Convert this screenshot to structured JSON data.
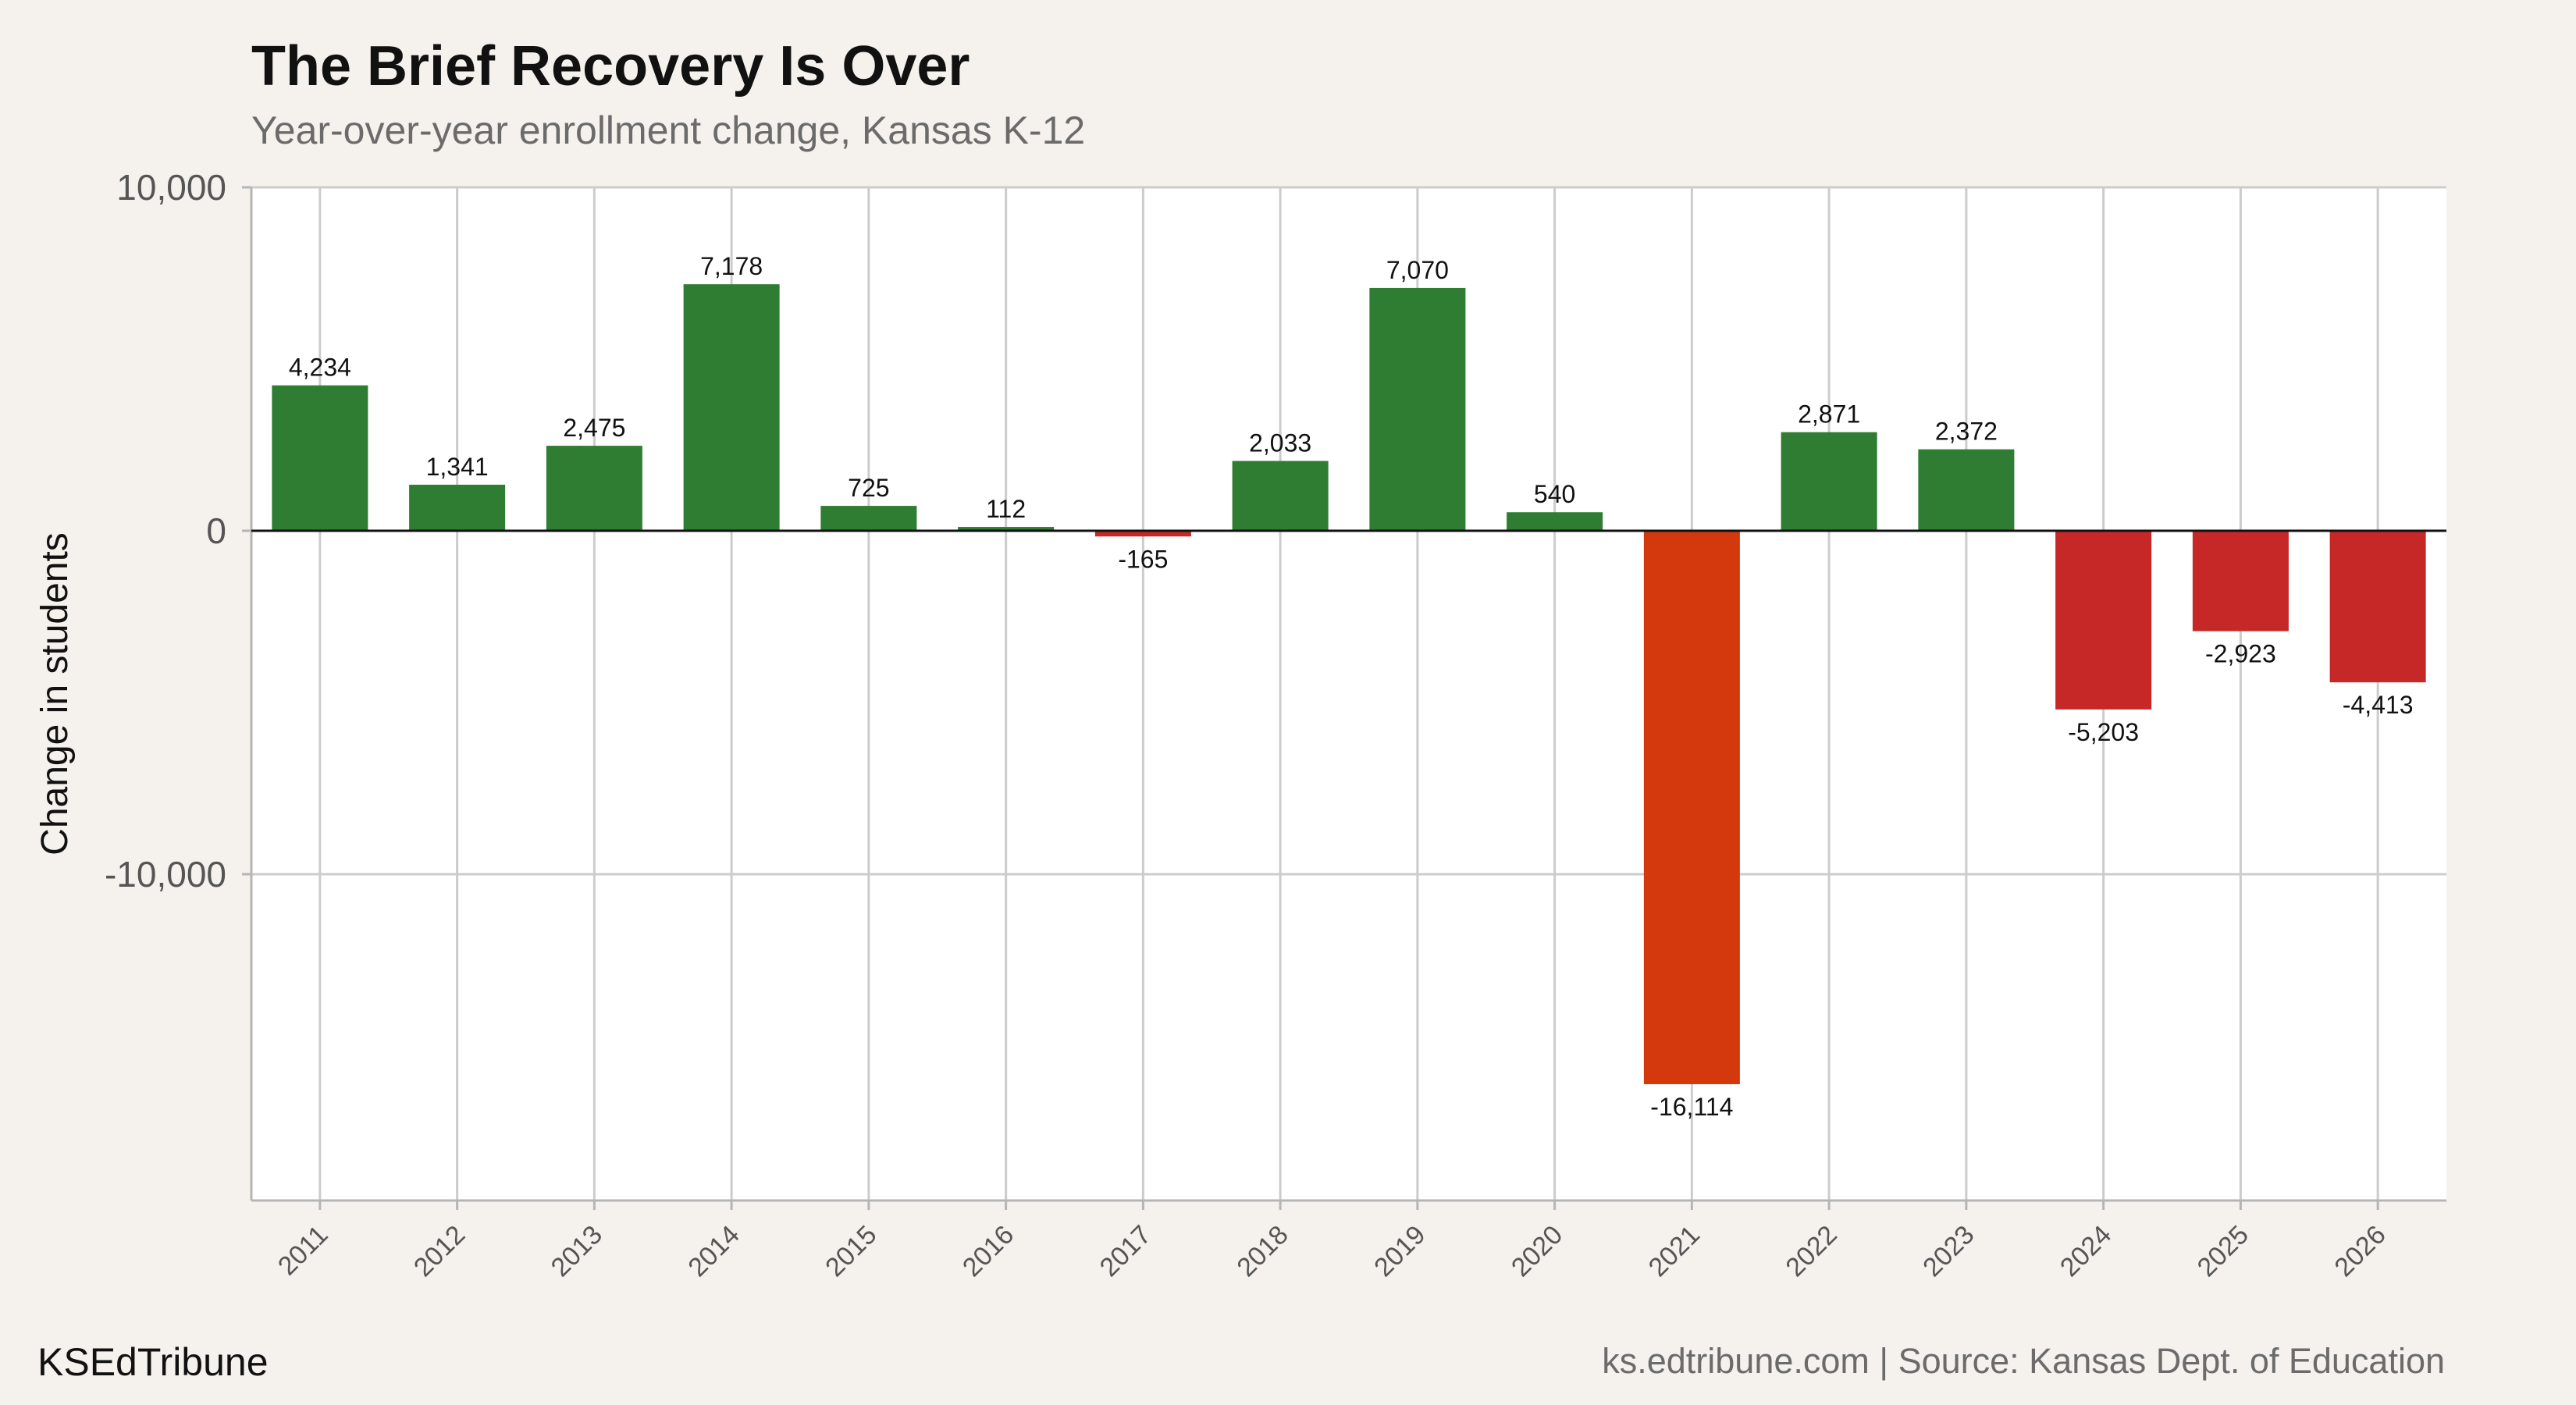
{
  "header": {
    "title": "The Brief Recovery Is Over",
    "subtitle": "Year-over-year enrollment change, Kansas K-12"
  },
  "footer": {
    "brand": "KSEdTribune",
    "source": "ks.edtribune.com | Source: Kansas Dept. of Education"
  },
  "colors": {
    "positive": "#2e7d32",
    "negative": "#c62828",
    "highlight": "#d4380d",
    "background": "#f5f2ed",
    "panel": "#ffffff",
    "grid": "#cccccc"
  },
  "chart_data": {
    "type": "bar",
    "title": "The Brief Recovery Is Over",
    "subtitle": "Year-over-year enrollment change, Kansas K-12",
    "xlabel": "",
    "ylabel": "Change in students",
    "ylim": [
      -19500,
      10000
    ],
    "yticks": [
      10000,
      0,
      -10000
    ],
    "ytick_labels": [
      "10,000",
      "0",
      "-10,000"
    ],
    "grid": true,
    "legend": "none",
    "categories": [
      "2011",
      "2012",
      "2013",
      "2014",
      "2015",
      "2016",
      "2017",
      "2018",
      "2019",
      "2020",
      "2021",
      "2022",
      "2023",
      "2024",
      "2025",
      "2026"
    ],
    "values": [
      4234,
      1341,
      2475,
      7178,
      725,
      112,
      -165,
      2033,
      7070,
      540,
      -16114,
      2871,
      2372,
      -5203,
      -2923,
      -4413
    ],
    "value_labels": [
      "4,234",
      "1,341",
      "2,475",
      "7,178",
      "725",
      "112",
      "-165",
      "2,033",
      "7,070",
      "540",
      "-16,114",
      "2,871",
      "2,372",
      "-5,203",
      "-2,923",
      "-4,413"
    ],
    "highlight_category": "2021"
  }
}
